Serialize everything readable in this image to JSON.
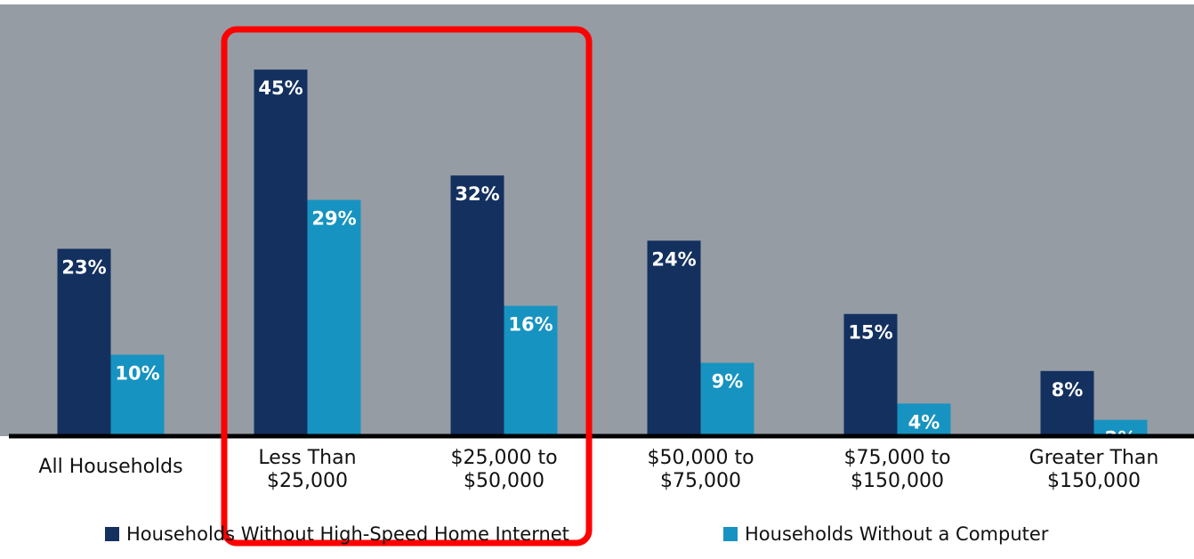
{
  "chart_data": {
    "type": "bar",
    "categories": [
      "All Households",
      "Less Than\n$25,000",
      "$25,000 to\n$50,000",
      "$50,000 to\n$75,000",
      "$75,000 to\n$150,000",
      "Greater Than\n$150,000"
    ],
    "series": [
      {
        "name": "Households Without High-Speed Home Internet",
        "color": "#13305f",
        "values": [
          23,
          45,
          32,
          24,
          15,
          8
        ],
        "value_labels": [
          "23%",
          "45%",
          "32%",
          "24%",
          "15%",
          "8%"
        ]
      },
      {
        "name": "Households Without a Computer",
        "color": "#1793c1",
        "values": [
          10,
          29,
          16,
          9,
          4,
          2
        ],
        "value_labels": [
          "10%",
          "29%",
          "16%",
          "9%",
          "4%",
          "2%"
        ]
      }
    ],
    "ylim": [
      0,
      53
    ],
    "background": "#959ca4",
    "highlight_color": "#ff0000"
  }
}
